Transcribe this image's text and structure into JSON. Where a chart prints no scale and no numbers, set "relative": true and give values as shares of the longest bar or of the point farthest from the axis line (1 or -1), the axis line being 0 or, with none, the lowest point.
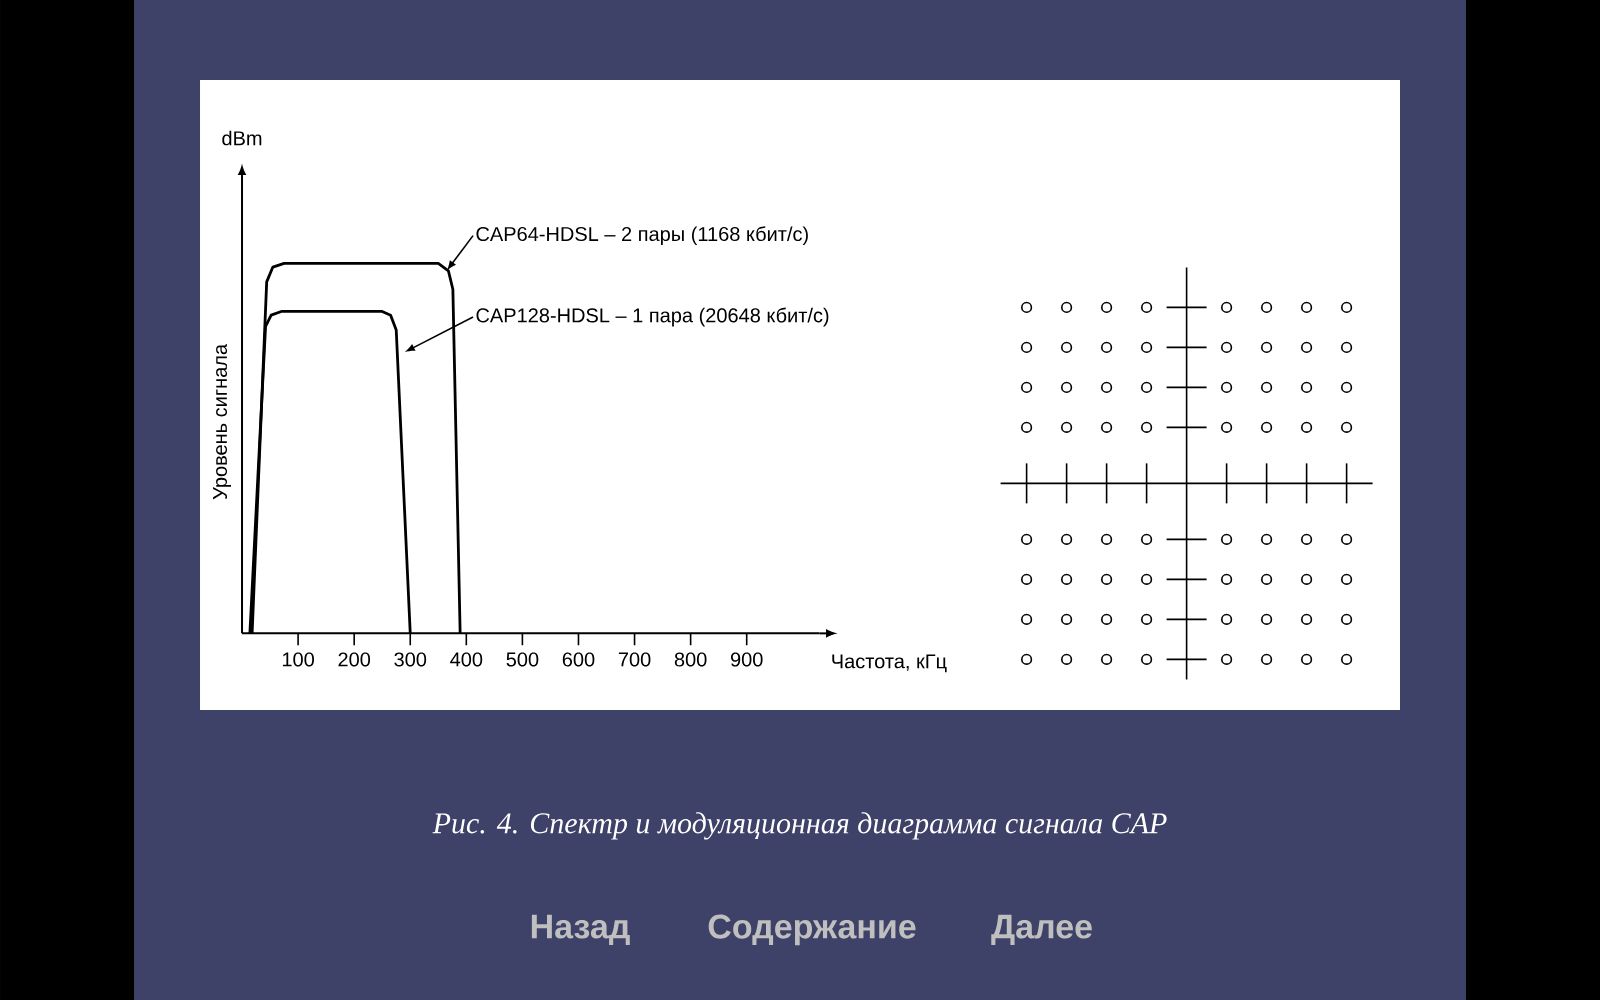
{
  "chart_data": {
    "type": "line",
    "relative": true,
    "xlabel": "Частота, кГц",
    "ylabel": "Уровень сигнала",
    "xlim": [
      0,
      1030
    ],
    "xticks": [
      100,
      200,
      300,
      400,
      500,
      600,
      700,
      800,
      900
    ],
    "marker": "none",
    "line_style": "solid",
    "series": [
      {
        "color": "#000000",
        "x": [
          18,
          44,
          55,
          75,
          350,
          368,
          376,
          389
        ],
        "values": [
          0,
          0.95,
          0.99,
          1,
          1,
          0.98,
          0.93,
          0
        ]
      },
      {
        "color": "#000000",
        "x": [
          14,
          42,
          52,
          70,
          250,
          265,
          275,
          300
        ],
        "values": [
          0,
          0.83,
          0.86,
          0.87,
          0.87,
          0.86,
          0.82,
          0
        ]
      }
    ],
    "annotations": [
      {
        "text": "CAP64-HDSL – 2 пары (1168 кбит/с)",
        "x": 365,
        "y": 0.98
      },
      {
        "text": "CAP128-HDSL – 1 пара (20648 кбит/с)",
        "x": 290,
        "y": 0.76
      },
      "dBm",
      "Рис. 4. Спектр и модуляционная диаграмма сигнала CAP",
      "Назад",
      "Содержание",
      "Далее"
    ]
  }
}
